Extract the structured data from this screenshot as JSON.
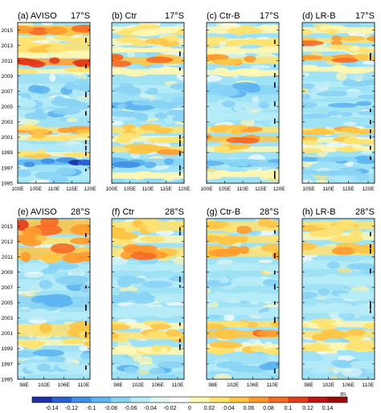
{
  "figure": {
    "type": "hovmoller",
    "colorbar": {
      "ticks": [
        "-0.14",
        "-0.12",
        "-0.1",
        "-0.08",
        "-0.06",
        "-0.04",
        "-0.02",
        "0",
        "0.02",
        "0.04",
        "0.06",
        "0.08",
        "0.1",
        "0.12",
        "0.14"
      ],
      "unit": "m",
      "colors": [
        "#1c2fa6",
        "#2a5fd1",
        "#3f8fe6",
        "#5cb4f0",
        "#88d3f5",
        "#b6ebf7",
        "#e0f7f5",
        "#ffffff",
        "#fff7b3",
        "#ffe270",
        "#ffc445",
        "#ff9a2e",
        "#f66a23",
        "#e23a1a",
        "#c01414",
        "#9a0a0a"
      ]
    },
    "y_ticks": [
      "2015",
      "2013",
      "2011",
      "2009",
      "2007",
      "2005",
      "2003",
      "2001",
      "1999",
      "1997",
      "1995"
    ]
  },
  "chart_data": [
    {
      "type": "heatmap",
      "label": "(a) AVISO",
      "lat": "17°S",
      "x_ticks": [
        "100E",
        "105E",
        "110E",
        "115E",
        "120E"
      ],
      "y_range": [
        1995,
        2016
      ],
      "value_range": [
        -0.14,
        0.14
      ],
      "unit": "m",
      "anomaly_bands": [
        {
          "years": [
            2014.4,
            2015.6
          ],
          "value": 0.09
        },
        {
          "years": [
            2013.6,
            2014.2
          ],
          "value": 0.05
        },
        {
          "years": [
            2012.2,
            2013.3
          ],
          "value": 0.06
        },
        {
          "years": [
            2011.4,
            2012.1
          ],
          "value": 0.03
        },
        {
          "years": [
            2010.4,
            2011.3
          ],
          "value": 0.12
        },
        {
          "years": [
            2009.3,
            2009.9
          ],
          "value": 0.04
        },
        {
          "years": [
            2006.8,
            2008.0
          ],
          "value": -0.05
        },
        {
          "years": [
            2005.0,
            2006.2
          ],
          "value": -0.04
        },
        {
          "years": [
            2003.6,
            2004.6
          ],
          "value": -0.05
        },
        {
          "years": [
            2001.6,
            2002.3
          ],
          "value": 0.07
        },
        {
          "years": [
            2000.6,
            2001.3
          ],
          "value": 0.05
        },
        {
          "years": [
            1999.2,
            2000.1
          ],
          "value": -0.03
        },
        {
          "years": [
            1998.5,
            1999.1
          ],
          "value": 0.05
        },
        {
          "years": [
            1997.4,
            1998.1
          ],
          "value": -0.11
        },
        {
          "years": [
            1995.4,
            1996.6
          ],
          "value": -0.05
        }
      ]
    },
    {
      "type": "heatmap",
      "label": "(b) Ctr",
      "lat": "17°S",
      "x_ticks": [
        "100E",
        "105E",
        "110E",
        "115E",
        "120E"
      ],
      "y_range": [
        1995,
        2016
      ],
      "value_range": [
        -0.14,
        0.14
      ],
      "unit": "m",
      "anomaly_bands": [
        {
          "years": [
            2014.6,
            2015.5
          ],
          "value": 0.04
        },
        {
          "years": [
            2013.0,
            2013.9
          ],
          "value": 0.05
        },
        {
          "years": [
            2012.1,
            2012.6
          ],
          "value": 0.03
        },
        {
          "years": [
            2010.6,
            2011.5
          ],
          "value": 0.09
        },
        {
          "years": [
            2009.2,
            2009.9
          ],
          "value": 0.03
        },
        {
          "years": [
            2006.8,
            2007.8
          ],
          "value": -0.04
        },
        {
          "years": [
            2004.8,
            2005.6
          ],
          "value": -0.06
        },
        {
          "years": [
            2003.4,
            2004.3
          ],
          "value": -0.04
        },
        {
          "years": [
            2001.5,
            2002.4
          ],
          "value": 0.06
        },
        {
          "years": [
            2000.4,
            2001.2
          ],
          "value": 0.05
        },
        {
          "years": [
            1999.0,
            1999.8
          ],
          "value": 0.07
        },
        {
          "years": [
            1997.3,
            1998.2
          ],
          "value": -0.08
        },
        {
          "years": [
            1995.6,
            1996.4
          ],
          "value": 0.03
        }
      ]
    },
    {
      "type": "heatmap",
      "label": "(c) Ctr-B",
      "lat": "17°S",
      "x_ticks": [
        "100E",
        "105E",
        "110E",
        "115E",
        "120E"
      ],
      "y_range": [
        1995,
        2016
      ],
      "value_range": [
        -0.14,
        0.14
      ],
      "unit": "m",
      "anomaly_bands": [
        {
          "years": [
            2014.6,
            2015.5
          ],
          "value": 0.04
        },
        {
          "years": [
            2013.1,
            2013.9
          ],
          "value": 0.05
        },
        {
          "years": [
            2012.0,
            2012.6
          ],
          "value": 0.03
        },
        {
          "years": [
            2010.6,
            2011.5
          ],
          "value": 0.08
        },
        {
          "years": [
            2009.1,
            2009.8
          ],
          "value": 0.03
        },
        {
          "years": [
            2006.6,
            2007.8
          ],
          "value": -0.06
        },
        {
          "years": [
            2004.6,
            2005.6
          ],
          "value": -0.04
        },
        {
          "years": [
            2003.2,
            2004.2
          ],
          "value": -0.03
        },
        {
          "years": [
            2001.6,
            2002.4
          ],
          "value": 0.07
        },
        {
          "years": [
            2000.4,
            2001.2
          ],
          "value": 0.09
        },
        {
          "years": [
            1999.1,
            1999.8
          ],
          "value": 0.05
        },
        {
          "years": [
            1997.4,
            1998.1
          ],
          "value": -0.06
        },
        {
          "years": [
            1995.8,
            1996.5
          ],
          "value": 0.03
        }
      ]
    },
    {
      "type": "heatmap",
      "label": "(d) LR-B",
      "lat": "17°S",
      "x_ticks": [
        "105E",
        "110E",
        "115E",
        "120E"
      ],
      "y_range": [
        1995,
        2016
      ],
      "value_range": [
        -0.14,
        0.14
      ],
      "unit": "m",
      "anomaly_bands": [
        {
          "years": [
            2014.6,
            2015.4
          ],
          "value": 0.04
        },
        {
          "years": [
            2013.3,
            2014.0
          ],
          "value": 0.08
        },
        {
          "years": [
            2012.2,
            2012.8
          ],
          "value": 0.04
        },
        {
          "years": [
            2011.0,
            2011.6
          ],
          "value": 0.09
        },
        {
          "years": [
            2009.6,
            2010.2
          ],
          "value": 0.03
        },
        {
          "years": [
            2007.6,
            2008.3
          ],
          "value": -0.05
        },
        {
          "years": [
            2006.2,
            2006.8
          ],
          "value": -0.04
        },
        {
          "years": [
            2005.0,
            2005.6
          ],
          "value": -0.05
        },
        {
          "years": [
            2003.6,
            2004.2
          ],
          "value": -0.04
        },
        {
          "years": [
            2001.6,
            2002.2
          ],
          "value": 0.07
        },
        {
          "years": [
            2000.3,
            2001.0
          ],
          "value": 0.05
        },
        {
          "years": [
            1999.2,
            1999.8
          ],
          "value": 0.04
        },
        {
          "years": [
            1997.8,
            1998.4
          ],
          "value": -0.06
        },
        {
          "years": [
            1996.2,
            1996.8
          ],
          "value": -0.05
        }
      ]
    },
    {
      "type": "heatmap",
      "label": "(e) AVISO",
      "lat": "28°S",
      "x_ticks": [
        "98E",
        "102E",
        "106E",
        "110E"
      ],
      "y_range": [
        1995,
        2016
      ],
      "value_range": [
        -0.14,
        0.14
      ],
      "unit": "m",
      "anomaly_bands": [
        {
          "years": [
            2014.0,
            2015.8
          ],
          "value": 0.1
        },
        {
          "years": [
            2012.6,
            2013.6
          ],
          "value": 0.08
        },
        {
          "years": [
            2010.6,
            2012.2
          ],
          "value": 0.09
        },
        {
          "years": [
            2009.0,
            2010.0
          ],
          "value": -0.04
        },
        {
          "years": [
            2006.6,
            2008.0
          ],
          "value": -0.05
        },
        {
          "years": [
            2004.4,
            2005.8
          ],
          "value": -0.06
        },
        {
          "years": [
            2002.8,
            2003.8
          ],
          "value": -0.03
        },
        {
          "years": [
            2000.6,
            2002.2
          ],
          "value": 0.06
        },
        {
          "years": [
            1999.4,
            2000.2
          ],
          "value": 0.05
        },
        {
          "years": [
            1997.6,
            1998.6
          ],
          "value": -0.05
        },
        {
          "years": [
            1995.6,
            1996.8
          ],
          "value": -0.04
        }
      ]
    },
    {
      "type": "heatmap",
      "label": "(f) Ctr",
      "lat": "28°S",
      "x_ticks": [
        "98E",
        "102E",
        "106E",
        "110E"
      ],
      "y_range": [
        1995,
        2016
      ],
      "value_range": [
        -0.14,
        0.14
      ],
      "unit": "m",
      "anomaly_bands": [
        {
          "years": [
            2014.4,
            2015.6
          ],
          "value": 0.06
        },
        {
          "years": [
            2012.8,
            2013.8
          ],
          "value": 0.05
        },
        {
          "years": [
            2011.0,
            2012.2
          ],
          "value": 0.08
        },
        {
          "years": [
            2009.2,
            2010.0
          ],
          "value": -0.03
        },
        {
          "years": [
            2007.2,
            2008.2
          ],
          "value": -0.04
        },
        {
          "years": [
            2005.2,
            2006.2
          ],
          "value": -0.04
        },
        {
          "years": [
            2003.4,
            2004.4
          ],
          "value": -0.03
        },
        {
          "years": [
            2001.6,
            2002.4
          ],
          "value": 0.05
        },
        {
          "years": [
            2000.2,
            2001.2
          ],
          "value": 0.06
        },
        {
          "years": [
            1998.2,
            1999.2
          ],
          "value": 0.04
        },
        {
          "years": [
            1996.0,
            1997.0
          ],
          "value": -0.05
        }
      ]
    },
    {
      "type": "heatmap",
      "label": "(g) Ctr-B",
      "lat": "28°S",
      "x_ticks": [
        "98E",
        "102E",
        "106E",
        "110E"
      ],
      "y_range": [
        1995,
        2016
      ],
      "value_range": [
        -0.14,
        0.14
      ],
      "unit": "m",
      "anomaly_bands": [
        {
          "years": [
            2014.4,
            2015.6
          ],
          "value": 0.07
        },
        {
          "years": [
            2012.8,
            2013.8
          ],
          "value": 0.06
        },
        {
          "years": [
            2011.0,
            2012.2
          ],
          "value": 0.08
        },
        {
          "years": [
            2009.2,
            2010.0
          ],
          "value": -0.03
        },
        {
          "years": [
            2007.2,
            2008.2
          ],
          "value": -0.04
        },
        {
          "years": [
            2005.2,
            2006.2
          ],
          "value": -0.03
        },
        {
          "years": [
            2003.4,
            2004.4
          ],
          "value": -0.04
        },
        {
          "years": [
            2001.8,
            2002.6
          ],
          "value": 0.06
        },
        {
          "years": [
            2000.4,
            2001.4
          ],
          "value": 0.09
        },
        {
          "years": [
            1998.6,
            1999.6
          ],
          "value": 0.05
        },
        {
          "years": [
            1996.0,
            1997.0
          ],
          "value": -0.05
        }
      ]
    },
    {
      "type": "heatmap",
      "label": "(h) LR-B",
      "lat": "28°S",
      "x_ticks": [
        "98E",
        "102E",
        "106E",
        "110E"
      ],
      "y_range": [
        1995,
        2016
      ],
      "value_range": [
        -0.14,
        0.14
      ],
      "unit": "m",
      "anomaly_bands": [
        {
          "years": [
            2014.6,
            2015.6
          ],
          "value": 0.06
        },
        {
          "years": [
            2013.2,
            2014.2
          ],
          "value": 0.04
        },
        {
          "years": [
            2011.2,
            2012.4
          ],
          "value": 0.07
        },
        {
          "years": [
            2009.4,
            2010.4
          ],
          "value": -0.04
        },
        {
          "years": [
            2007.4,
            2008.4
          ],
          "value": -0.03
        },
        {
          "years": [
            2005.6,
            2006.6
          ],
          "value": -0.04
        },
        {
          "years": [
            2003.6,
            2004.6
          ],
          "value": -0.03
        },
        {
          "years": [
            2001.8,
            2002.6
          ],
          "value": 0.04
        },
        {
          "years": [
            2000.4,
            2001.4
          ],
          "value": 0.06
        },
        {
          "years": [
            1998.8,
            1999.8
          ],
          "value": 0.04
        },
        {
          "years": [
            1996.4,
            1997.4
          ],
          "value": -0.04
        }
      ]
    }
  ]
}
